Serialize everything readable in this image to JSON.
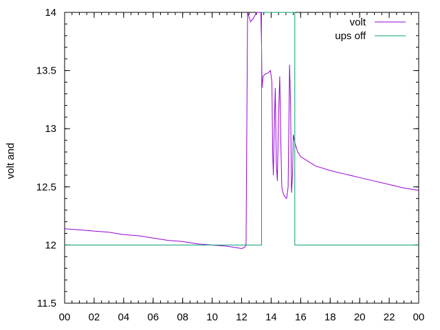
{
  "chart_data": {
    "type": "line",
    "ylabel": "volt and",
    "xlim": [
      0,
      24
    ],
    "ylim": [
      11.5,
      14
    ],
    "x_ticks": [
      "00",
      "02",
      "04",
      "06",
      "08",
      "10",
      "12",
      "14",
      "16",
      "18",
      "20",
      "22",
      "00"
    ],
    "x_tick_values": [
      0,
      2,
      4,
      6,
      8,
      10,
      12,
      14,
      16,
      18,
      20,
      22,
      24
    ],
    "y_ticks": [
      "11.5",
      "12",
      "12.5",
      "13",
      "13.5",
      "14"
    ],
    "y_tick_values": [
      11.5,
      12,
      12.5,
      13,
      13.5,
      14
    ],
    "grid": false,
    "legend_position": "top-right",
    "series": [
      {
        "name": "volt",
        "color": "#9400d3",
        "points": [
          [
            0,
            12.14
          ],
          [
            1,
            12.13
          ],
          [
            2,
            12.12
          ],
          [
            3,
            12.11
          ],
          [
            4,
            12.09
          ],
          [
            5,
            12.08
          ],
          [
            6,
            12.06
          ],
          [
            7,
            12.04
          ],
          [
            8,
            12.03
          ],
          [
            9,
            12.01
          ],
          [
            10,
            12.0
          ],
          [
            11,
            11.99
          ],
          [
            11.5,
            11.98
          ],
          [
            12.0,
            11.97
          ],
          [
            12.2,
            11.98
          ],
          [
            12.3,
            12.0
          ],
          [
            12.35,
            13.0
          ],
          [
            12.4,
            14.0
          ],
          [
            12.6,
            13.92
          ],
          [
            12.8,
            13.95
          ],
          [
            13.0,
            14.0
          ],
          [
            13.3,
            14.0
          ],
          [
            13.35,
            13.7
          ],
          [
            13.38,
            13.35
          ],
          [
            13.45,
            13.45
          ],
          [
            13.6,
            13.47
          ],
          [
            13.8,
            13.48
          ],
          [
            13.95,
            13.5
          ],
          [
            14.05,
            13.4
          ],
          [
            14.1,
            12.8
          ],
          [
            14.15,
            12.6
          ],
          [
            14.2,
            12.95
          ],
          [
            14.28,
            13.35
          ],
          [
            14.35,
            12.7
          ],
          [
            14.42,
            12.55
          ],
          [
            14.5,
            13.1
          ],
          [
            14.58,
            13.45
          ],
          [
            14.65,
            12.9
          ],
          [
            14.72,
            12.5
          ],
          [
            14.8,
            12.45
          ],
          [
            14.9,
            12.42
          ],
          [
            15.05,
            12.4
          ],
          [
            15.15,
            12.5
          ],
          [
            15.25,
            13.55
          ],
          [
            15.32,
            13.2
          ],
          [
            15.38,
            12.45
          ],
          [
            15.45,
            12.6
          ],
          [
            15.5,
            12.95
          ],
          [
            15.6,
            12.88
          ],
          [
            15.8,
            12.8
          ],
          [
            16.0,
            12.76
          ],
          [
            16.5,
            12.72
          ],
          [
            17,
            12.68
          ],
          [
            18,
            12.64
          ],
          [
            19,
            12.61
          ],
          [
            20,
            12.58
          ],
          [
            21,
            12.55
          ],
          [
            22,
            12.52
          ],
          [
            23,
            12.49
          ],
          [
            24,
            12.47
          ]
        ]
      },
      {
        "name": "ups off",
        "color": "#009e73",
        "points": [
          [
            0,
            12.0
          ],
          [
            13.35,
            12.0
          ],
          [
            13.35,
            14.0
          ],
          [
            15.6,
            14.0
          ],
          [
            15.6,
            12.0
          ],
          [
            24,
            12.0
          ]
        ]
      }
    ]
  }
}
